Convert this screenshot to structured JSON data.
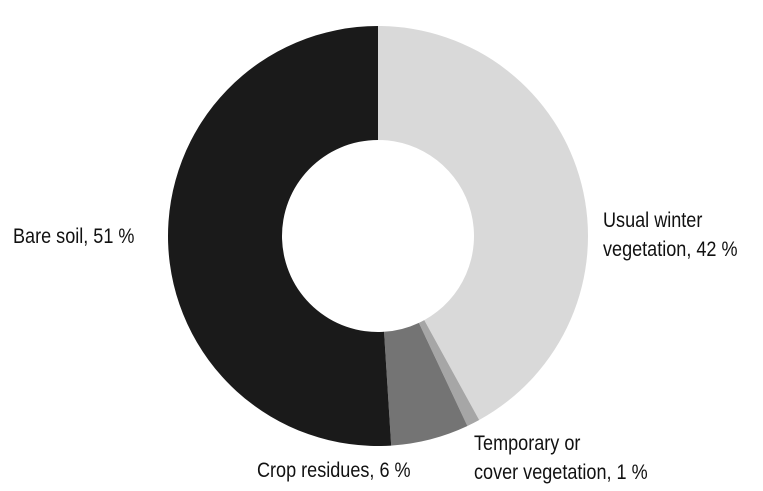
{
  "chart_data": {
    "type": "pie",
    "style": "donut",
    "title": "",
    "start_angle": "12 o'clock",
    "direction": "clockwise",
    "legend": "none",
    "slices": [
      {
        "name": "Usual winter vegetation",
        "value": 42,
        "label_lines": [
          "Usual winter",
          "vegetation, 42 %"
        ],
        "color": "#d9d9d9"
      },
      {
        "name": "Temporary or cover vegetation",
        "value": 1,
        "label_lines": [
          "Temporary or",
          "cover vegetation, 1 %"
        ],
        "color": "#a6a6a6"
      },
      {
        "name": "Crop residues",
        "value": 6,
        "label_lines": [
          "Crop residues, 6 %"
        ],
        "color": "#747474"
      },
      {
        "name": "Bare soil",
        "value": 51,
        "label_lines": [
          "Bare soil, 51 %"
        ],
        "color": "#1a1a1a"
      }
    ]
  }
}
